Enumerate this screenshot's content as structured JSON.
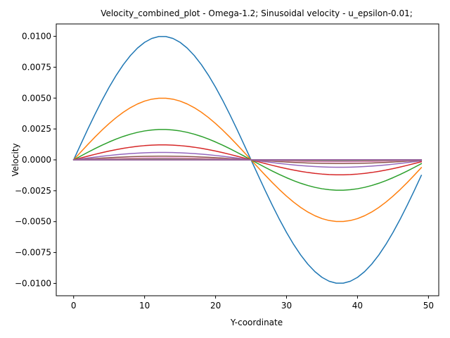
{
  "chart_data": {
    "type": "line",
    "title": "Velocity_combined_plot - Omega-1.2; Sinusoidal velocity - u_epsilon-0.01;",
    "xlabel": "Y-coordinate",
    "ylabel": "Velocity",
    "xlim": [
      -2.45,
      51.45
    ],
    "ylim": [
      -0.011,
      0.011
    ],
    "x_ticks": [
      0,
      10,
      20,
      30,
      40,
      50
    ],
    "x_tick_labels": [
      "0",
      "10",
      "20",
      "30",
      "40",
      "50"
    ],
    "y_ticks": [
      0.01,
      0.0075,
      0.005,
      0.0025,
      0,
      -0.0025,
      -0.005,
      -0.0075,
      -0.01
    ],
    "y_tick_labels": [
      "0.0100",
      "0.0075",
      "0.0050",
      "0.0025",
      "0.0000",
      "−0.0025",
      "−0.0050",
      "−0.0075",
      "−0.0100"
    ],
    "grid": false,
    "legend": "none",
    "x": [
      0,
      1,
      2,
      3,
      4,
      5,
      6,
      7,
      8,
      9,
      10,
      11,
      12,
      13,
      14,
      15,
      16,
      17,
      18,
      19,
      20,
      21,
      22,
      23,
      24,
      25,
      26,
      27,
      28,
      29,
      30,
      31,
      32,
      33,
      34,
      35,
      36,
      37,
      38,
      39,
      40,
      41,
      42,
      43,
      44,
      45,
      46,
      47,
      48,
      49
    ],
    "series": [
      {
        "color": "#1f77b4",
        "values": [
          0.0,
          0.001253,
          0.002487,
          0.003681,
          0.004818,
          0.005878,
          0.006845,
          0.007705,
          0.008443,
          0.009048,
          0.009511,
          0.009823,
          0.00998,
          0.00998,
          0.009823,
          0.009511,
          0.009048,
          0.008443,
          0.007705,
          0.006845,
          0.005878,
          0.004818,
          0.003681,
          0.002487,
          0.001253,
          0.0,
          -0.001253,
          -0.002487,
          -0.003681,
          -0.004818,
          -0.005878,
          -0.006845,
          -0.007705,
          -0.008443,
          -0.009048,
          -0.009511,
          -0.009823,
          -0.00998,
          -0.00998,
          -0.009823,
          -0.009511,
          -0.009048,
          -0.008443,
          -0.007705,
          -0.006845,
          -0.005878,
          -0.004818,
          -0.003681,
          -0.002487,
          -0.001253
        ]
      },
      {
        "color": "#ff7f0e",
        "values": [
          0.0,
          0.000626,
          0.001243,
          0.001841,
          0.002409,
          0.002939,
          0.003423,
          0.003852,
          0.004222,
          0.004524,
          0.004755,
          0.004911,
          0.00499,
          0.00499,
          0.004911,
          0.004755,
          0.004524,
          0.004222,
          0.003852,
          0.003423,
          0.002939,
          0.002409,
          0.001841,
          0.001243,
          0.000626,
          0.0,
          -0.000626,
          -0.001243,
          -0.001841,
          -0.002409,
          -0.002939,
          -0.003423,
          -0.003852,
          -0.004222,
          -0.004524,
          -0.004755,
          -0.004911,
          -0.00499,
          -0.00499,
          -0.004911,
          -0.004755,
          -0.004524,
          -0.004222,
          -0.003852,
          -0.003423,
          -0.002939,
          -0.002409,
          -0.001841,
          -0.001243,
          -0.000626
        ]
      },
      {
        "color": "#2ca02c",
        "values": [
          0.0,
          0.000308,
          0.000612,
          0.000906,
          0.001185,
          0.001446,
          0.001684,
          0.001896,
          0.002077,
          0.002226,
          0.00234,
          0.002417,
          0.002455,
          0.002455,
          0.002417,
          0.00234,
          0.002226,
          0.002077,
          0.001896,
          0.001684,
          0.001446,
          0.001185,
          0.000906,
          0.000612,
          0.000308,
          0.0,
          -0.000308,
          -0.000612,
          -0.000906,
          -0.001185,
          -0.001446,
          -0.001684,
          -0.001896,
          -0.002077,
          -0.002226,
          -0.00234,
          -0.002417,
          -0.002455,
          -0.002455,
          -0.002417,
          -0.00234,
          -0.002226,
          -0.002077,
          -0.001896,
          -0.001684,
          -0.001446,
          -0.001185,
          -0.000906,
          -0.000612,
          -0.000308
        ]
      },
      {
        "color": "#d62728",
        "values": [
          0.0,
          0.000152,
          0.000301,
          0.000445,
          0.000583,
          0.000711,
          0.000828,
          0.000932,
          0.001022,
          0.001095,
          0.001151,
          0.001189,
          0.001208,
          0.001208,
          0.001189,
          0.001151,
          0.001095,
          0.001022,
          0.000932,
          0.000828,
          0.000711,
          0.000583,
          0.000445,
          0.000301,
          0.000152,
          0.0,
          -0.000152,
          -0.000301,
          -0.000445,
          -0.000583,
          -0.000711,
          -0.000828,
          -0.000932,
          -0.001022,
          -0.001095,
          -0.001151,
          -0.001189,
          -0.001208,
          -0.001208,
          -0.001189,
          -0.001151,
          -0.001095,
          -0.001022,
          -0.000932,
          -0.000828,
          -0.000711,
          -0.000583,
          -0.000445,
          -0.000301,
          -0.000152
        ]
      },
      {
        "color": "#9467bd",
        "values": [
          0.0,
          7.5e-05,
          0.000149,
          0.000221,
          0.000289,
          0.000353,
          0.000411,
          0.000462,
          0.000507,
          0.000543,
          0.000571,
          0.000589,
          0.000599,
          0.000599,
          0.000589,
          0.000571,
          0.000543,
          0.000507,
          0.000462,
          0.000411,
          0.000353,
          0.000289,
          0.000221,
          0.000149,
          7.5e-05,
          0.0,
          -7.5e-05,
          -0.000149,
          -0.000221,
          -0.000289,
          -0.000353,
          -0.000411,
          -0.000462,
          -0.000507,
          -0.000543,
          -0.000571,
          -0.000589,
          -0.000599,
          -0.000599,
          -0.000589,
          -0.000571,
          -0.000543,
          -0.000507,
          -0.000462,
          -0.000411,
          -0.000353,
          -0.000289,
          -0.000221,
          -0.000149,
          -7.5e-05
        ]
      },
      {
        "color": "#8c564b",
        "values": [
          0.0,
          3.8e-05,
          7.5e-05,
          0.00011,
          0.000145,
          0.000176,
          0.000205,
          0.000231,
          0.000253,
          0.000271,
          0.000285,
          0.000295,
          0.000299,
          0.000299,
          0.000295,
          0.000285,
          0.000271,
          0.000253,
          0.000231,
          0.000205,
          0.000176,
          0.000145,
          0.00011,
          7.5e-05,
          3.8e-05,
          0.0,
          -3.8e-05,
          -7.5e-05,
          -0.00011,
          -0.000145,
          -0.000176,
          -0.000205,
          -0.000231,
          -0.000253,
          -0.000271,
          -0.000285,
          -0.000295,
          -0.000299,
          -0.000299,
          -0.000295,
          -0.000285,
          -0.000271,
          -0.000253,
          -0.000231,
          -0.000205,
          -0.000176,
          -0.000145,
          -0.00011,
          -7.5e-05,
          -3.8e-05
        ]
      },
      {
        "color": "#e377c2",
        "values": [
          0.0,
          1.9e-05,
          3.7e-05,
          5.5e-05,
          7.2e-05,
          8.8e-05,
          0.000103,
          0.000116,
          0.000127,
          0.000136,
          0.000143,
          0.000147,
          0.00015,
          0.00015,
          0.000147,
          0.000143,
          0.000136,
          0.000127,
          0.000116,
          0.000103,
          8.8e-05,
          7.2e-05,
          5.5e-05,
          3.7e-05,
          1.9e-05,
          0.0,
          -1.9e-05,
          -3.7e-05,
          -5.5e-05,
          -7.2e-05,
          -8.8e-05,
          -0.000103,
          -0.000116,
          -0.000127,
          -0.000136,
          -0.000143,
          -0.000147,
          -0.00015,
          -0.00015,
          -0.000147,
          -0.000143,
          -0.000136,
          -0.000127,
          -0.000116,
          -0.000103,
          -8.8e-05,
          -7.2e-05,
          -5.5e-05,
          -3.7e-05,
          -1.9e-05
        ]
      },
      {
        "color": "#7f7f7f",
        "values": [
          0.0,
          9e-06,
          1.9e-05,
          2.8e-05,
          3.6e-05,
          4.4e-05,
          5.1e-05,
          5.8e-05,
          6.3e-05,
          6.8e-05,
          7.1e-05,
          7.4e-05,
          7.5e-05,
          7.5e-05,
          7.4e-05,
          7.1e-05,
          6.8e-05,
          6.3e-05,
          5.8e-05,
          5.1e-05,
          4.4e-05,
          3.6e-05,
          2.8e-05,
          1.9e-05,
          9e-06,
          0.0,
          -9e-06,
          -1.9e-05,
          -2.8e-05,
          -3.6e-05,
          -4.4e-05,
          -5.1e-05,
          -5.8e-05,
          -6.3e-05,
          -6.8e-05,
          -7.1e-05,
          -7.4e-05,
          -7.5e-05,
          -7.5e-05,
          -7.4e-05,
          -7.1e-05,
          -6.8e-05,
          -6.3e-05,
          -5.8e-05,
          -5.1e-05,
          -4.4e-05,
          -3.6e-05,
          -2.8e-05,
          -1.9e-05,
          -9e-06
        ]
      },
      {
        "color": "#bcbd22",
        "values": [
          0.0,
          5e-06,
          9e-06,
          1.4e-05,
          1.8e-05,
          2.2e-05,
          2.6e-05,
          2.9e-05,
          3.2e-05,
          3.4e-05,
          3.6e-05,
          3.7e-05,
          3.7e-05,
          3.7e-05,
          3.7e-05,
          3.6e-05,
          3.4e-05,
          3.2e-05,
          2.9e-05,
          2.6e-05,
          2.2e-05,
          1.8e-05,
          1.4e-05,
          9e-06,
          5e-06,
          0.0,
          -5e-06,
          -9e-06,
          -1.4e-05,
          -1.8e-05,
          -2.2e-05,
          -2.6e-05,
          -2.9e-05,
          -3.2e-05,
          -3.4e-05,
          -3.6e-05,
          -3.7e-05,
          -3.7e-05,
          -3.7e-05,
          -3.7e-05,
          -3.6e-05,
          -3.4e-05,
          -3.2e-05,
          -2.9e-05,
          -2.6e-05,
          -2.2e-05,
          -1.8e-05,
          -1.4e-05,
          -9e-06,
          -5e-06
        ]
      },
      {
        "color": "#17becf",
        "values": [
          0.0,
          2e-06,
          5e-06,
          7e-06,
          9e-06,
          1.1e-05,
          1.3e-05,
          1.4e-05,
          1.6e-05,
          1.7e-05,
          1.8e-05,
          1.8e-05,
          1.9e-05,
          1.9e-05,
          1.8e-05,
          1.8e-05,
          1.7e-05,
          1.6e-05,
          1.4e-05,
          1.3e-05,
          1.1e-05,
          9e-06,
          7e-06,
          5e-06,
          2e-06,
          0.0,
          -2e-06,
          -5e-06,
          -7e-06,
          -9e-06,
          -1.1e-05,
          -1.3e-05,
          -1.4e-05,
          -1.6e-05,
          -1.7e-05,
          -1.8e-05,
          -1.8e-05,
          -1.9e-05,
          -1.9e-05,
          -1.8e-05,
          -1.8e-05,
          -1.7e-05,
          -1.6e-05,
          -1.4e-05,
          -1.3e-05,
          -1.1e-05,
          -9e-06,
          -7e-06,
          -5e-06,
          -2e-06
        ]
      },
      {
        "color": "#1f77b4",
        "values": [
          0.0,
          1e-06,
          2e-06,
          3e-06,
          5e-06,
          6e-06,
          6e-06,
          7e-06,
          8e-06,
          8e-06,
          9e-06,
          9e-06,
          9e-06,
          9e-06,
          9e-06,
          9e-06,
          8e-06,
          8e-06,
          7e-06,
          6e-06,
          6e-06,
          5e-06,
          3e-06,
          2e-06,
          1e-06,
          0.0,
          -1e-06,
          -2e-06,
          -3e-06,
          -5e-06,
          -6e-06,
          -6e-06,
          -7e-06,
          -8e-06,
          -8e-06,
          -9e-06,
          -9e-06,
          -9e-06,
          -9e-06,
          -9e-06,
          -9e-06,
          -8e-06,
          -8e-06,
          -7e-06,
          -6e-06,
          -6e-06,
          -5e-06,
          -3e-06,
          -2e-06,
          -1e-06
        ]
      },
      {
        "color": "#ff7f0e",
        "values": [
          0.0,
          0.0,
          1e-06,
          2e-06,
          2e-06,
          3e-06,
          3e-06,
          4e-06,
          4e-06,
          4e-06,
          4e-06,
          5e-06,
          5e-06,
          5e-06,
          5e-06,
          4e-06,
          4e-06,
          4e-06,
          4e-06,
          3e-06,
          3e-06,
          2e-06,
          2e-06,
          1e-06,
          0.0,
          0.0,
          -0.0,
          -1e-06,
          -2e-06,
          -2e-06,
          -3e-06,
          -3e-06,
          -4e-06,
          -4e-06,
          -4e-06,
          -4e-06,
          -5e-06,
          -5e-06,
          -5e-06,
          -5e-06,
          -4e-06,
          -4e-06,
          -4e-06,
          -4e-06,
          -3e-06,
          -3e-06,
          -2e-06,
          -2e-06,
          -1e-06,
          -0.0
        ]
      },
      {
        "color": "#2ca02c",
        "values": [
          0,
          0,
          0,
          0,
          0,
          0,
          0,
          0,
          0,
          0,
          0,
          0,
          0,
          0,
          0,
          0,
          0,
          0,
          0,
          0,
          0,
          0,
          0,
          0,
          0,
          0,
          0,
          0,
          0,
          0,
          0,
          0,
          0,
          0,
          0,
          0,
          0,
          0,
          0,
          0,
          0,
          0,
          0,
          0,
          0,
          0,
          0,
          0,
          0,
          0
        ]
      },
      {
        "color": "#d62728",
        "values": [
          0,
          0,
          0,
          0,
          0,
          0,
          0,
          0,
          0,
          0,
          0,
          0,
          0,
          0,
          0,
          0,
          0,
          0,
          0,
          0,
          0,
          0,
          0,
          0,
          0,
          0,
          0,
          0,
          0,
          0,
          0,
          0,
          0,
          0,
          0,
          0,
          0,
          0,
          0,
          0,
          0,
          0,
          0,
          0,
          0,
          0,
          0,
          0,
          0,
          0
        ]
      },
      {
        "color": "#9467bd",
        "values": [
          0,
          0,
          0,
          0,
          0,
          0,
          0,
          0,
          0,
          0,
          0,
          0,
          0,
          0,
          0,
          0,
          0,
          0,
          0,
          0,
          0,
          0,
          0,
          0,
          0,
          0,
          0,
          0,
          0,
          0,
          0,
          0,
          0,
          0,
          0,
          0,
          0,
          0,
          0,
          0,
          0,
          0,
          0,
          0,
          0,
          0,
          0,
          0,
          0,
          0
        ]
      }
    ]
  }
}
